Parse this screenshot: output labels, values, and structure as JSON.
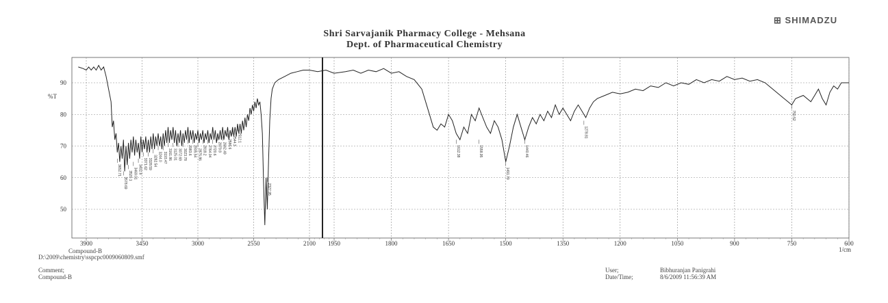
{
  "header": {
    "brand": "SHIMADZU",
    "title_line1": "Shri Sarvajanik Pharmacy College - Mehsana",
    "title_line2": "Dept. of Pharmaceutical Chemistry"
  },
  "footer": {
    "compound_top": "Compound-B",
    "file_path": "D:\\2009\\chemistry\\sspcpc0009060809.smf",
    "comment_label": "Comment;",
    "comment_value": "Compound-B",
    "user_label": "User;",
    "user_value": "Bibhuranjan Panigrahi",
    "datetime_label": "Date/Time;",
    "datetime_value": "8/6/2009 11:56:39 AM"
  },
  "chart_data": {
    "type": "line",
    "title": "Shri Sarvajanik Pharmacy College - Mehsana",
    "subtitle": "Dept. of Pharmaceutical Chemistry",
    "xlabel": "1/cm",
    "ylabel": "%T",
    "x_reversed": true,
    "y_ticks": [
      50,
      60,
      70,
      80,
      90
    ],
    "x_ticks": [
      {
        "value": 3900,
        "label": "3900"
      },
      {
        "value": 3450,
        "label": "3450"
      },
      {
        "value": 3000,
        "label": "3000"
      },
      {
        "value": 2550,
        "label": "2550"
      },
      {
        "value": 2100,
        "label": "2100"
      },
      {
        "value": 1950,
        "label": "1950"
      },
      {
        "value": 1800,
        "label": "1800"
      },
      {
        "value": 1650,
        "label": "1650"
      },
      {
        "value": 1500,
        "label": "1500"
      },
      {
        "value": 1350,
        "label": "1350"
      },
      {
        "value": 1200,
        "label": "1200"
      },
      {
        "value": 1050,
        "label": "1050"
      },
      {
        "value": 900,
        "label": "900"
      },
      {
        "value": 750,
        "label": "750"
      },
      {
        "value": 600,
        "label": "600"
      }
    ],
    "grid": true,
    "series": [
      {
        "points": [
          [
            3950,
            95
          ],
          [
            3920,
            94.5
          ],
          [
            3900,
            94
          ],
          [
            3880,
            95
          ],
          [
            3860,
            94
          ],
          [
            3840,
            95
          ],
          [
            3820,
            94
          ],
          [
            3800,
            95.5
          ],
          [
            3780,
            94
          ],
          [
            3760,
            95
          ],
          [
            3740,
            92
          ],
          [
            3720,
            88
          ],
          [
            3700,
            84
          ],
          [
            3690,
            76
          ],
          [
            3680,
            78
          ],
          [
            3670,
            72
          ],
          [
            3660,
            74
          ],
          [
            3650,
            68
          ],
          [
            3640,
            71
          ],
          [
            3630,
            65
          ],
          [
            3620,
            70
          ],
          [
            3610,
            66
          ],
          [
            3600,
            72
          ],
          [
            3590,
            62
          ],
          [
            3580,
            70
          ],
          [
            3570,
            64
          ],
          [
            3560,
            71
          ],
          [
            3550,
            66
          ],
          [
            3540,
            72
          ],
          [
            3530,
            68
          ],
          [
            3520,
            73
          ],
          [
            3510,
            67
          ],
          [
            3500,
            72
          ],
          [
            3490,
            68
          ],
          [
            3480,
            71
          ],
          [
            3470,
            66
          ],
          [
            3460,
            73
          ],
          [
            3450,
            68
          ],
          [
            3440,
            72
          ],
          [
            3430,
            69
          ],
          [
            3420,
            73
          ],
          [
            3410,
            68
          ],
          [
            3400,
            72
          ],
          [
            3390,
            68
          ],
          [
            3380,
            73
          ],
          [
            3370,
            69
          ],
          [
            3360,
            74
          ],
          [
            3350,
            69
          ],
          [
            3340,
            73
          ],
          [
            3330,
            70
          ],
          [
            3320,
            74
          ],
          [
            3310,
            70
          ],
          [
            3300,
            73
          ],
          [
            3290,
            69
          ],
          [
            3280,
            74
          ],
          [
            3270,
            70
          ],
          [
            3260,
            75
          ],
          [
            3250,
            71
          ],
          [
            3240,
            76
          ],
          [
            3230,
            71
          ],
          [
            3220,
            75
          ],
          [
            3210,
            72
          ],
          [
            3200,
            76
          ],
          [
            3190,
            71
          ],
          [
            3180,
            75
          ],
          [
            3170,
            70
          ],
          [
            3160,
            74
          ],
          [
            3150,
            71
          ],
          [
            3140,
            75
          ],
          [
            3130,
            70
          ],
          [
            3120,
            74
          ],
          [
            3110,
            71
          ],
          [
            3100,
            75
          ],
          [
            3090,
            72
          ],
          [
            3080,
            76
          ],
          [
            3070,
            71
          ],
          [
            3060,
            75
          ],
          [
            3050,
            72
          ],
          [
            3040,
            75
          ],
          [
            3030,
            71
          ],
          [
            3020,
            74
          ],
          [
            3010,
            72
          ],
          [
            3000,
            75
          ],
          [
            2990,
            71
          ],
          [
            2980,
            74
          ],
          [
            2970,
            72
          ],
          [
            2960,
            75
          ],
          [
            2950,
            71
          ],
          [
            2940,
            74
          ],
          [
            2930,
            72
          ],
          [
            2920,
            75
          ],
          [
            2910,
            71
          ],
          [
            2900,
            74
          ],
          [
            2890,
            72
          ],
          [
            2880,
            76
          ],
          [
            2870,
            72
          ],
          [
            2860,
            75
          ],
          [
            2850,
            71
          ],
          [
            2840,
            74
          ],
          [
            2830,
            72
          ],
          [
            2820,
            75
          ],
          [
            2810,
            72
          ],
          [
            2800,
            76
          ],
          [
            2790,
            72
          ],
          [
            2780,
            75
          ],
          [
            2770,
            73
          ],
          [
            2760,
            76
          ],
          [
            2750,
            72
          ],
          [
            2740,
            75
          ],
          [
            2730,
            73
          ],
          [
            2720,
            76
          ],
          [
            2710,
            73
          ],
          [
            2700,
            76
          ],
          [
            2690,
            73
          ],
          [
            2680,
            77
          ],
          [
            2670,
            74
          ],
          [
            2660,
            77
          ],
          [
            2650,
            74
          ],
          [
            2640,
            78
          ],
          [
            2630,
            75
          ],
          [
            2620,
            79
          ],
          [
            2610,
            76
          ],
          [
            2600,
            80
          ],
          [
            2590,
            78
          ],
          [
            2580,
            82
          ],
          [
            2570,
            80
          ],
          [
            2560,
            83
          ],
          [
            2550,
            81
          ],
          [
            2540,
            84
          ],
          [
            2530,
            82
          ],
          [
            2520,
            85
          ],
          [
            2510,
            83
          ],
          [
            2500,
            84
          ],
          [
            2490,
            80
          ],
          [
            2480,
            74
          ],
          [
            2470,
            58
          ],
          [
            2460,
            45
          ],
          [
            2450,
            60
          ],
          [
            2440,
            50
          ],
          [
            2430,
            65
          ],
          [
            2420,
            78
          ],
          [
            2410,
            85
          ],
          [
            2400,
            88
          ],
          [
            2380,
            90
          ],
          [
            2350,
            91
          ],
          [
            2300,
            92
          ],
          [
            2250,
            93
          ],
          [
            2200,
            93.5
          ],
          [
            2150,
            94
          ],
          [
            2100,
            94
          ],
          [
            2050,
            93.5
          ],
          [
            2000,
            94
          ],
          [
            1950,
            93
          ],
          [
            1920,
            93.5
          ],
          [
            1900,
            94
          ],
          [
            1880,
            93
          ],
          [
            1860,
            94
          ],
          [
            1840,
            93.5
          ],
          [
            1820,
            94.5
          ],
          [
            1800,
            93
          ],
          [
            1780,
            93.5
          ],
          [
            1760,
            92
          ],
          [
            1740,
            91
          ],
          [
            1720,
            88
          ],
          [
            1710,
            84
          ],
          [
            1700,
            80
          ],
          [
            1690,
            76
          ],
          [
            1680,
            75
          ],
          [
            1670,
            77
          ],
          [
            1660,
            76
          ],
          [
            1650,
            80
          ],
          [
            1640,
            78
          ],
          [
            1630,
            74
          ],
          [
            1620,
            72
          ],
          [
            1610,
            76
          ],
          [
            1600,
            74
          ],
          [
            1590,
            80
          ],
          [
            1580,
            78
          ],
          [
            1570,
            82
          ],
          [
            1560,
            79
          ],
          [
            1550,
            76
          ],
          [
            1540,
            74
          ],
          [
            1530,
            78
          ],
          [
            1520,
            76
          ],
          [
            1510,
            72
          ],
          [
            1500,
            65
          ],
          [
            1490,
            70
          ],
          [
            1480,
            76
          ],
          [
            1470,
            80
          ],
          [
            1460,
            76
          ],
          [
            1450,
            72
          ],
          [
            1440,
            76
          ],
          [
            1430,
            79
          ],
          [
            1420,
            77
          ],
          [
            1410,
            80
          ],
          [
            1400,
            78
          ],
          [
            1390,
            81
          ],
          [
            1380,
            79
          ],
          [
            1370,
            83
          ],
          [
            1360,
            80
          ],
          [
            1350,
            82
          ],
          [
            1340,
            80
          ],
          [
            1330,
            78
          ],
          [
            1320,
            81
          ],
          [
            1310,
            83
          ],
          [
            1300,
            81
          ],
          [
            1290,
            79
          ],
          [
            1280,
            82
          ],
          [
            1270,
            84
          ],
          [
            1260,
            85
          ],
          [
            1240,
            86
          ],
          [
            1220,
            87
          ],
          [
            1200,
            86.5
          ],
          [
            1180,
            87
          ],
          [
            1160,
            88
          ],
          [
            1140,
            87.5
          ],
          [
            1120,
            89
          ],
          [
            1100,
            88.5
          ],
          [
            1080,
            90
          ],
          [
            1060,
            89
          ],
          [
            1040,
            90
          ],
          [
            1020,
            89.5
          ],
          [
            1000,
            91
          ],
          [
            980,
            90
          ],
          [
            960,
            91
          ],
          [
            940,
            90.5
          ],
          [
            920,
            92
          ],
          [
            900,
            91
          ],
          [
            880,
            91.5
          ],
          [
            860,
            90.5
          ],
          [
            840,
            91
          ],
          [
            820,
            90
          ],
          [
            800,
            88
          ],
          [
            780,
            86
          ],
          [
            760,
            84
          ],
          [
            750,
            83
          ],
          [
            740,
            85
          ],
          [
            720,
            86
          ],
          [
            700,
            84
          ],
          [
            690,
            86
          ],
          [
            680,
            88
          ],
          [
            670,
            85
          ],
          [
            660,
            83
          ],
          [
            650,
            87
          ],
          [
            640,
            89
          ],
          [
            630,
            88
          ],
          [
            620,
            90
          ],
          [
            610,
            90
          ],
          [
            600,
            90
          ]
        ]
      }
    ],
    "peak_labels": [
      {
        "x": 3650,
        "y": 66,
        "text": "3652.71"
      },
      {
        "x": 3600,
        "y": 62,
        "text": "3578.69"
      },
      {
        "x": 3560,
        "y": 64,
        "text": "3520.1"
      },
      {
        "x": 3520,
        "y": 65,
        "text": "3469.01"
      },
      {
        "x": 3480,
        "y": 66,
        "text": "3402.8"
      },
      {
        "x": 3440,
        "y": 68,
        "text": "3371.62"
      },
      {
        "x": 3400,
        "y": 68,
        "text": "3328.59"
      },
      {
        "x": 3360,
        "y": 69,
        "text": "3282.54"
      },
      {
        "x": 3320,
        "y": 70,
        "text": "3244.0"
      },
      {
        "x": 3280,
        "y": 70,
        "text": "3193.47"
      },
      {
        "x": 3240,
        "y": 71,
        "text": "3161.86"
      },
      {
        "x": 3200,
        "y": 71,
        "text": "3125.01"
      },
      {
        "x": 3160,
        "y": 71,
        "text": "3072.69"
      },
      {
        "x": 3120,
        "y": 71,
        "text": "3023.78"
      },
      {
        "x": 3080,
        "y": 72,
        "text": "2983.6"
      },
      {
        "x": 3040,
        "y": 72,
        "text": "2935.54"
      },
      {
        "x": 3000,
        "y": 71,
        "text": "2875.86"
      },
      {
        "x": 2960,
        "y": 72,
        "text": "2818.2"
      },
      {
        "x": 2920,
        "y": 72,
        "text": "2764.04"
      },
      {
        "x": 2880,
        "y": 72,
        "text": "2720.6"
      },
      {
        "x": 2840,
        "y": 73,
        "text": "2679.8"
      },
      {
        "x": 2800,
        "y": 73,
        "text": "2642.49"
      },
      {
        "x": 2760,
        "y": 74,
        "text": "2586.6"
      },
      {
        "x": 2720,
        "y": 75,
        "text": "2544.3"
      },
      {
        "x": 2680,
        "y": 76,
        "text": "2512.1"
      },
      {
        "x": 2440,
        "y": 60,
        "text": "2327.95"
      },
      {
        "x": 1630,
        "y": 72,
        "text": "1612.38"
      },
      {
        "x": 1570,
        "y": 72,
        "text": "1558.95"
      },
      {
        "x": 1500,
        "y": 65,
        "text": "1491.79"
      },
      {
        "x": 1450,
        "y": 72,
        "text": "1440.46"
      },
      {
        "x": 1295,
        "y": 78,
        "text": "1278.81"
      },
      {
        "x": 750,
        "y": 83,
        "text": "750.52"
      }
    ]
  }
}
